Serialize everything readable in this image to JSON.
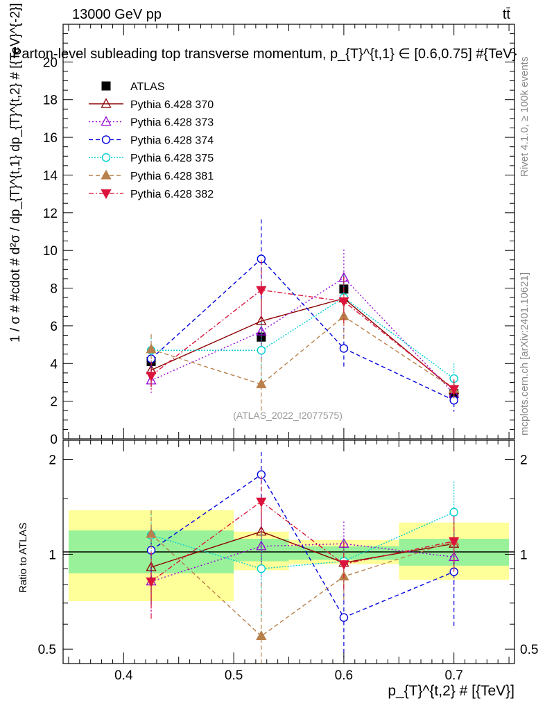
{
  "header": {
    "energy_label": "13000 GeV pp",
    "process_label": "tt̄",
    "plot_title": "Parton-level subleading top transverse momentum, p_{T}^{t,1} ∈ [0.6,0.75] #{TeV}",
    "analysis_id": "(ATLAS_2022_I2077575)"
  },
  "side_labels": {
    "rivet": "Rivet 4.1.0, ≥ 100k events",
    "mcplots": "mcplots.cern.ch [arXiv:2401.10621]"
  },
  "colors": {
    "atlas": "#000000",
    "p370": "#8b0000",
    "p373": "#9400d3",
    "p374": "#0000dd",
    "p375": "#00ced1",
    "p381": "#b8804a",
    "p382": "#dc143c",
    "band_inner": "#99f299",
    "band_outer": "#ffff99"
  },
  "chart_data": [
    {
      "type": "line",
      "panel": "main",
      "ylabel": "1 / σ # #cdot # d²σ / dp_{T}^{t,1} dp_{T}^{t,2} # [{TeV}^{-2}]",
      "xlim": [
        0.345,
        0.755
      ],
      "ylim": [
        0,
        22
      ],
      "yticks": [
        0,
        2,
        4,
        6,
        8,
        10,
        12,
        14,
        16,
        18,
        20
      ],
      "x": [
        0.425,
        0.525,
        0.6,
        0.7
      ],
      "series": [
        {
          "name": "ATLAS",
          "values": [
            4.1,
            5.4,
            7.95,
            2.4
          ],
          "errors": [
            0.5,
            0.6,
            0.8,
            0.3
          ],
          "marker": "square-filled",
          "style": "none"
        },
        {
          "name": "Pythia 6.428 370",
          "values": [
            3.65,
            6.25,
            7.45,
            2.6
          ],
          "errors": [
            0.9,
            1.5,
            1.3,
            0.5
          ],
          "marker": "triangle-up-open",
          "style": "solid"
        },
        {
          "name": "Pythia 6.428 373",
          "values": [
            3.1,
            5.7,
            8.55,
            2.4
          ],
          "errors": [
            0.7,
            1.4,
            1.5,
            0.5
          ],
          "marker": "triangle-up-open",
          "style": "dotted"
        },
        {
          "name": "Pythia 6.428 374",
          "values": [
            4.25,
            9.55,
            4.8,
            2.05
          ],
          "errors": [
            0.8,
            2.1,
            1.1,
            0.6
          ],
          "marker": "circle-open",
          "style": "dashed"
        },
        {
          "name": "Pythia 6.428 375",
          "values": [
            4.7,
            4.7,
            7.5,
            3.2
          ],
          "errors": [
            0.8,
            1.5,
            1.2,
            0.8
          ],
          "marker": "circle-open",
          "style": "dotted-fine"
        },
        {
          "name": "Pythia 6.428 381",
          "values": [
            4.75,
            2.9,
            6.5,
            2.65
          ],
          "errors": [
            0.8,
            1.4,
            1.2,
            0.5
          ],
          "marker": "triangle-up-filled",
          "style": "dashed"
        },
        {
          "name": "Pythia 6.428 382",
          "values": [
            3.35,
            7.9,
            7.3,
            2.65
          ],
          "errors": [
            0.8,
            1.6,
            1.3,
            0.5
          ],
          "marker": "triangle-down-filled",
          "style": "dashdot"
        }
      ]
    },
    {
      "type": "line",
      "panel": "ratio",
      "ylabel": "Ratio to ATLAS",
      "xlabel": "p_{T}^{t,2} # [{TeV}]",
      "xlim": [
        0.345,
        0.755
      ],
      "ylim": [
        0.45,
        2.3
      ],
      "yscale": "log",
      "yticks": [
        0.5,
        1,
        2
      ],
      "xticks": [
        0.4,
        0.5,
        0.6,
        0.7
      ],
      "bands": [
        {
          "x0": 0.35,
          "x1": 0.5,
          "inner": [
            0.87,
            1.19
          ],
          "outer": [
            0.71,
            1.38
          ]
        },
        {
          "x0": 0.5,
          "x1": 0.55,
          "inner": [
            0.95,
            1.12
          ],
          "outer": [
            0.89,
            1.18
          ]
        },
        {
          "x0": 0.55,
          "x1": 0.65,
          "inner": [
            0.96,
            1.06
          ],
          "outer": [
            0.93,
            1.11
          ]
        },
        {
          "x0": 0.65,
          "x1": 0.75,
          "inner": [
            0.92,
            1.12
          ],
          "outer": [
            0.83,
            1.26
          ]
        }
      ],
      "x": [
        0.425,
        0.525,
        0.6,
        0.7
      ],
      "series": [
        {
          "name": "Pythia 6.428 370",
          "values": [
            0.91,
            1.18,
            0.94,
            1.08
          ],
          "errors": [
            0.22,
            0.28,
            0.16,
            0.2
          ]
        },
        {
          "name": "Pythia 6.428 373",
          "values": [
            0.82,
            1.06,
            1.08,
            0.98
          ],
          "errors": [
            0.18,
            0.26,
            0.19,
            0.2
          ]
        },
        {
          "name": "Pythia 6.428 374",
          "values": [
            1.03,
            1.79,
            0.63,
            0.88
          ],
          "errors": [
            0.2,
            0.32,
            0.16,
            0.3
          ]
        },
        {
          "name": "Pythia 6.428 375",
          "values": [
            1.15,
            0.9,
            0.95,
            1.36
          ],
          "errors": [
            0.22,
            0.28,
            0.16,
            0.34
          ]
        },
        {
          "name": "Pythia 6.428 381",
          "values": [
            1.16,
            0.55,
            0.85,
            1.1
          ],
          "errors": [
            0.22,
            0.26,
            0.15,
            0.22
          ]
        },
        {
          "name": "Pythia 6.428 382",
          "values": [
            0.82,
            1.47,
            0.93,
            1.1
          ],
          "errors": [
            0.2,
            0.3,
            0.16,
            0.22
          ]
        }
      ]
    }
  ]
}
